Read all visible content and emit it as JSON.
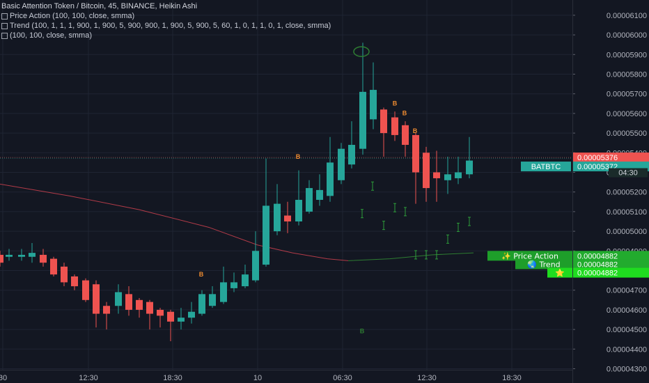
{
  "legend": {
    "title": "Basic Attention Token / Bitcoin, 45, BINANCE, Heikin Ashi",
    "indicators": [
      "Price Action (100, 100, close, smma)",
      "Trend (100, 1, 1, 1, 900, 1, 900, 5, 900, 900, 1, 900, 5, 900, 5, 60, 1, 0, 1, 1, 0, 1, close, smma)",
      "(100, 100, close, smma)"
    ]
  },
  "chart_data": {
    "type": "candlestick",
    "title": "Basic Attention Token / Bitcoin, 45, BINANCE, Heikin Ashi",
    "ylim": [
      4.25e-05,
      6.14e-05
    ],
    "y_ticks": [
      "0.00004300",
      "0.00004400",
      "0.00004500",
      "0.00004600",
      "0.00004700",
      "0.00004800",
      "0.00004900",
      "0.00005000",
      "0.00005100",
      "0.00005200",
      "0.00005300",
      "0.00005400",
      "0.00005500",
      "0.00005600",
      "0.00005700",
      "0.00005800",
      "0.00005900",
      "0.00006000",
      "0.00006100"
    ],
    "x_ticks": [
      {
        "label": "30",
        "x": 4
      },
      {
        "label": "12:30",
        "x": 127
      },
      {
        "label": "18:30",
        "x": 248
      },
      {
        "label": "10",
        "x": 370
      },
      {
        "label": "06:30",
        "x": 492
      },
      {
        "label": "12:30",
        "x": 613
      },
      {
        "label": "18:30",
        "x": 735
      }
    ],
    "up_color": "#26a69a",
    "down_color": "#ef5350",
    "candles": [
      {
        "x": 0,
        "o": 4.88e-05,
        "h": 4.9e-05,
        "l": 4.82e-05,
        "c": 4.84e-05
      },
      {
        "x": 13,
        "o": 4.87e-05,
        "h": 4.91e-05,
        "l": 4.85e-05,
        "c": 4.88e-05
      },
      {
        "x": 31,
        "o": 4.87e-05,
        "h": 4.91e-05,
        "l": 4.85e-05,
        "c": 4.88e-05
      },
      {
        "x": 46,
        "o": 4.87e-05,
        "h": 4.94e-05,
        "l": 4.84e-05,
        "c": 4.89e-05
      },
      {
        "x": 62,
        "o": 4.88e-05,
        "h": 4.91e-05,
        "l": 4.82e-05,
        "c": 4.84e-05
      },
      {
        "x": 77,
        "o": 4.86e-05,
        "h": 4.87e-05,
        "l": 4.77e-05,
        "c": 4.78e-05
      },
      {
        "x": 92,
        "o": 4.82e-05,
        "h": 4.84e-05,
        "l": 4.72e-05,
        "c": 4.74e-05
      },
      {
        "x": 107,
        "o": 4.77e-05,
        "h": 4.78e-05,
        "l": 4.7e-05,
        "c": 4.72e-05
      },
      {
        "x": 123,
        "o": 4.75e-05,
        "h": 4.76e-05,
        "l": 4.64e-05,
        "c": 4.65e-05
      },
      {
        "x": 138,
        "o": 4.73e-05,
        "h": 4.75e-05,
        "l": 4.51e-05,
        "c": 4.58e-05
      },
      {
        "x": 153,
        "o": 4.62e-05,
        "h": 4.64e-05,
        "l": 4.5e-05,
        "c": 4.58e-05
      },
      {
        "x": 170,
        "o": 4.62e-05,
        "h": 4.73e-05,
        "l": 4.58e-05,
        "c": 4.69e-05
      },
      {
        "x": 185,
        "o": 4.68e-05,
        "h": 4.72e-05,
        "l": 4.57e-05,
        "c": 4.6e-05
      },
      {
        "x": 200,
        "o": 4.65e-05,
        "h": 4.66e-05,
        "l": 4.56e-05,
        "c": 4.6e-05
      },
      {
        "x": 215,
        "o": 4.64e-05,
        "h": 4.65e-05,
        "l": 4.5e-05,
        "c": 4.58e-05
      },
      {
        "x": 230,
        "o": 4.6e-05,
        "h": 4.61e-05,
        "l": 4.51e-05,
        "c": 4.57e-05
      },
      {
        "x": 245,
        "o": 4.59e-05,
        "h": 4.6e-05,
        "l": 4.44e-05,
        "c": 4.54e-05
      },
      {
        "x": 260,
        "o": 4.54e-05,
        "h": 4.61e-05,
        "l": 4.5e-05,
        "c": 4.56e-05
      },
      {
        "x": 275,
        "o": 4.56e-05,
        "h": 4.64e-05,
        "l": 4.53e-05,
        "c": 4.59e-05
      },
      {
        "x": 290,
        "o": 4.58e-05,
        "h": 4.7e-05,
        "l": 4.57e-05,
        "c": 4.68e-05
      },
      {
        "x": 305,
        "o": 4.62e-05,
        "h": 4.72e-05,
        "l": 4.61e-05,
        "c": 4.68e-05
      },
      {
        "x": 321,
        "o": 4.64e-05,
        "h": 4.82e-05,
        "l": 4.63e-05,
        "c": 4.74e-05
      },
      {
        "x": 336,
        "o": 4.71e-05,
        "h": 4.79e-05,
        "l": 4.69e-05,
        "c": 4.74e-05
      },
      {
        "x": 352,
        "o": 4.72e-05,
        "h": 4.83e-05,
        "l": 4.71e-05,
        "c": 4.78e-05
      },
      {
        "x": 367,
        "o": 4.75e-05,
        "h": 5e-05,
        "l": 4.74e-05,
        "c": 4.9e-05
      },
      {
        "x": 382,
        "o": 4.83e-05,
        "h": 5.37e-05,
        "l": 4.82e-05,
        "c": 5.13e-05
      },
      {
        "x": 398,
        "o": 5e-05,
        "h": 5.24e-05,
        "l": 4.98e-05,
        "c": 5.14e-05
      },
      {
        "x": 413,
        "o": 5.08e-05,
        "h": 5.15e-05,
        "l": 4.99e-05,
        "c": 5.05e-05
      },
      {
        "x": 429,
        "o": 5.05e-05,
        "h": 5.31e-05,
        "l": 5.03e-05,
        "c": 5.16e-05
      },
      {
        "x": 444,
        "o": 5.1e-05,
        "h": 5.26e-05,
        "l": 5.09e-05,
        "c": 5.22e-05
      },
      {
        "x": 459,
        "o": 5.16e-05,
        "h": 5.29e-05,
        "l": 5.13e-05,
        "c": 5.21e-05
      },
      {
        "x": 474,
        "o": 5.18e-05,
        "h": 5.48e-05,
        "l": 5.15e-05,
        "c": 5.35e-05
      },
      {
        "x": 490,
        "o": 5.26e-05,
        "h": 5.45e-05,
        "l": 5.24e-05,
        "c": 5.42e-05
      },
      {
        "x": 505,
        "o": 5.34e-05,
        "h": 5.56e-05,
        "l": 5.32e-05,
        "c": 5.44e-05
      },
      {
        "x": 521,
        "o": 5.42e-05,
        "h": 5.96e-05,
        "l": 5.39e-05,
        "c": 5.71e-05
      },
      {
        "x": 536,
        "o": 5.57e-05,
        "h": 5.86e-05,
        "l": 5.52e-05,
        "c": 5.72e-05
      },
      {
        "x": 551,
        "o": 5.62e-05,
        "h": 5.63e-05,
        "l": 5.38e-05,
        "c": 5.5e-05
      },
      {
        "x": 567,
        "o": 5.58e-05,
        "h": 5.61e-05,
        "l": 5.46e-05,
        "c": 5.49e-05
      },
      {
        "x": 582,
        "o": 5.54e-05,
        "h": 5.56e-05,
        "l": 5.38e-05,
        "c": 5.44e-05
      },
      {
        "x": 597,
        "o": 5.49e-05,
        "h": 5.5e-05,
        "l": 5.14e-05,
        "c": 5.3e-05
      },
      {
        "x": 612,
        "o": 5.4e-05,
        "h": 5.43e-05,
        "l": 5.15e-05,
        "c": 5.22e-05
      },
      {
        "x": 627,
        "o": 5.3e-05,
        "h": 5.41e-05,
        "l": 5.15e-05,
        "c": 5.27e-05
      },
      {
        "x": 643,
        "o": 5.26e-05,
        "h": 5.38e-05,
        "l": 5.19e-05,
        "c": 5.29e-05
      },
      {
        "x": 658,
        "o": 5.27e-05,
        "h": 5.38e-05,
        "l": 5.24e-05,
        "c": 5.3e-05
      },
      {
        "x": 674,
        "o": 5.29e-05,
        "h": 5.48e-05,
        "l": 5.27e-05,
        "c": 5.36e-05
      }
    ],
    "smma_series": {
      "color": "#b23b48",
      "points": [
        [
          0,
          5.24e-05
        ],
        [
          100,
          5.18e-05
        ],
        [
          200,
          5.11e-05
        ],
        [
          300,
          5.02e-05
        ],
        [
          370,
          4.93e-05
        ],
        [
          420,
          4.89e-05
        ],
        [
          470,
          4.86e-05
        ],
        [
          500,
          4.85e-05
        ]
      ]
    },
    "trend_series": {
      "color": "#2e7d32",
      "points": [
        [
          500,
          4.85e-05
        ],
        [
          560,
          4.86e-05
        ],
        [
          620,
          4.88e-05
        ],
        [
          680,
          4.89e-05
        ]
      ]
    },
    "b_markers": [
      {
        "x": 428,
        "price": 5.37e-05,
        "label": "B",
        "color": "#f08c30"
      },
      {
        "x": 289,
        "price": 4.77e-05,
        "label": "B",
        "color": "#f08c30"
      },
      {
        "x": 567,
        "price": 5.64e-05,
        "label": "B",
        "color": "#f08c30"
      },
      {
        "x": 581,
        "price": 5.59e-05,
        "label": "B",
        "color": "#f08c30"
      },
      {
        "x": 596,
        "price": 5.5e-05,
        "label": "B",
        "color": "#f08c30"
      },
      {
        "x": 520,
        "price": 4.48e-05,
        "label": "B",
        "color": "#2e7d32"
      }
    ],
    "i_markers": [
      {
        "x": 535,
        "price": 5.23e-05
      },
      {
        "x": 520,
        "price": 5.09e-05
      },
      {
        "x": 551,
        "price": 5.03e-05
      },
      {
        "x": 567,
        "price": 5.12e-05
      },
      {
        "x": 582,
        "price": 5.1e-05
      },
      {
        "x": 597,
        "price": 4.88e-05
      },
      {
        "x": 612,
        "price": 4.88e-05
      },
      {
        "x": 627,
        "price": 4.88e-05
      },
      {
        "x": 643,
        "price": 4.96e-05
      },
      {
        "x": 658,
        "price": 5.02e-05
      },
      {
        "x": 674,
        "price": 5.05e-05
      }
    ],
    "ellipse_marker": {
      "x": 519,
      "price": 5.915e-05,
      "color": "#2e7d32"
    },
    "price_lines": [
      {
        "price": 5.376e-05,
        "color": "#ef5350"
      },
      {
        "price": 5.372e-05,
        "color": "#26a69a"
      }
    ],
    "right_labels": [
      {
        "text": "0.00005376",
        "price": 5.376e-05,
        "bg": "#ef5350"
      },
      {
        "text": "0.00005372",
        "price": 5.33e-05,
        "bg": "#26a69a"
      },
      {
        "text": "0.00004882",
        "price": 4.875e-05,
        "bg": "#22ab2e"
      },
      {
        "text": "0.00004882",
        "price": 4.832e-05,
        "bg": "#22ab2e"
      },
      {
        "text": "0.00004882",
        "price": 4.789e-05,
        "bg": "#1fdc1f"
      }
    ],
    "countdown": {
      "text": "04:30"
    },
    "symbol_tag": {
      "text": "BATBTC",
      "bg": "#26a69a"
    },
    "indicator_tags": [
      {
        "text": "Price Action",
        "icon": "✨",
        "bg": "#1e9e2a",
        "price": 4.875e-05
      },
      {
        "text": "Trend",
        "icon": "🌏",
        "bg": "#1e9e2a",
        "price": 4.832e-05
      },
      {
        "text": "",
        "icon": "⭐",
        "bg": "#1fdc1f",
        "price": 4.789e-05
      }
    ]
  }
}
